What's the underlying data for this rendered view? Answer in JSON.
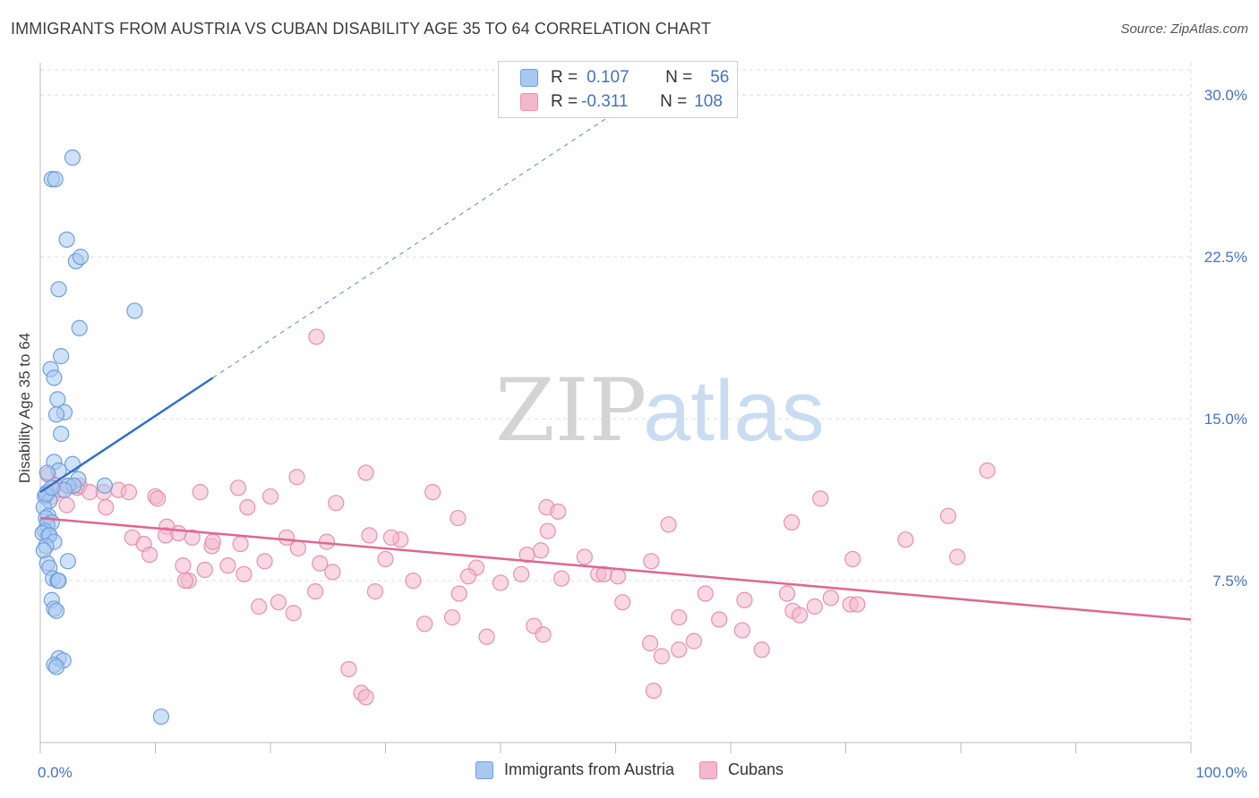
{
  "title": "IMMIGRANTS FROM AUSTRIA VS CUBAN DISABILITY AGE 35 TO 64 CORRELATION CHART",
  "source": "Source: ZipAtlas.com",
  "watermark": {
    "zip": "ZIP",
    "atlas": "atlas"
  },
  "legend_stats": [
    {
      "r_label": "R =",
      "r_value": "0.107",
      "n_label": "N =",
      "n_value": "56"
    },
    {
      "r_label": "R =",
      "r_value": "-0.311",
      "n_label": "N =",
      "n_value": "108"
    }
  ],
  "colors": {
    "blue_fill": "#a8c8f0",
    "blue_stroke": "#6f9fdd",
    "blue_line": "#2f6fcf",
    "pink_fill": "#f4b8cc",
    "pink_stroke": "#e890ad",
    "pink_line": "#e06692",
    "grid": "#dddddd",
    "axis_text": "#4472c4"
  },
  "chart_data": {
    "type": "scatter",
    "title": "IMMIGRANTS FROM AUSTRIA VS CUBAN DISABILITY AGE 35 TO 64 CORRELATION CHART",
    "xlabel": "",
    "ylabel": "Disability Age 35 to 64",
    "xlim": [
      0,
      100
    ],
    "ylim": [
      0,
      31.5
    ],
    "x_tick_labels": [
      "0.0%",
      "100.0%"
    ],
    "y_ticks": [
      7.5,
      15.0,
      22.5,
      30.0
    ],
    "y_tick_labels": [
      "7.5%",
      "15.0%",
      "22.5%",
      "30.0%"
    ],
    "grid": true,
    "legend": "bottom",
    "series": [
      {
        "name": "Immigrants from Austria",
        "color": "#a8c8f0",
        "trend": {
          "x": [
            0,
            15
          ],
          "y": [
            11.6,
            16.9
          ],
          "dashed_to": {
            "x": 50,
            "y": 29.2
          }
        },
        "points": [
          [
            2.8,
            27.1
          ],
          [
            1.0,
            26.1
          ],
          [
            1.3,
            26.1
          ],
          [
            2.3,
            23.3
          ],
          [
            3.1,
            22.3
          ],
          [
            3.5,
            22.5
          ],
          [
            1.6,
            21.0
          ],
          [
            8.2,
            20.0
          ],
          [
            3.4,
            19.2
          ],
          [
            1.8,
            17.9
          ],
          [
            0.9,
            17.3
          ],
          [
            1.2,
            16.9
          ],
          [
            1.5,
            15.9
          ],
          [
            2.1,
            15.3
          ],
          [
            1.4,
            15.2
          ],
          [
            1.8,
            14.3
          ],
          [
            1.2,
            13.0
          ],
          [
            2.8,
            12.9
          ],
          [
            1.6,
            12.6
          ],
          [
            0.6,
            12.5
          ],
          [
            3.3,
            12.2
          ],
          [
            2.4,
            11.9
          ],
          [
            2.9,
            11.9
          ],
          [
            5.6,
            11.9
          ],
          [
            2.1,
            11.7
          ],
          [
            0.6,
            11.6
          ],
          [
            0.4,
            11.4
          ],
          [
            0.8,
            11.2
          ],
          [
            0.3,
            10.9
          ],
          [
            0.7,
            10.5
          ],
          [
            0.5,
            10.4
          ],
          [
            1.0,
            10.2
          ],
          [
            0.6,
            10.1
          ],
          [
            0.4,
            9.8
          ],
          [
            0.7,
            9.6
          ],
          [
            0.2,
            9.7
          ],
          [
            0.8,
            9.6
          ],
          [
            1.2,
            9.3
          ],
          [
            0.5,
            9.1
          ],
          [
            0.3,
            8.9
          ],
          [
            2.4,
            8.4
          ],
          [
            0.6,
            8.3
          ],
          [
            0.8,
            8.1
          ],
          [
            1.1,
            7.6
          ],
          [
            1.5,
            7.5
          ],
          [
            1.6,
            7.5
          ],
          [
            1.0,
            6.6
          ],
          [
            1.2,
            6.2
          ],
          [
            1.4,
            6.1
          ],
          [
            1.6,
            3.9
          ],
          [
            2.0,
            3.8
          ],
          [
            1.2,
            3.6
          ],
          [
            1.4,
            3.5
          ],
          [
            10.5,
            1.2
          ],
          [
            0.5,
            11.5
          ],
          [
            1.0,
            11.8
          ]
        ]
      },
      {
        "name": "Cubans",
        "color": "#f4b8cc",
        "trend": {
          "x": [
            0,
            100
          ],
          "y": [
            10.4,
            5.7
          ]
        },
        "points": [
          [
            24.0,
            18.8
          ],
          [
            82.3,
            12.6
          ],
          [
            28.3,
            12.5
          ],
          [
            22.3,
            12.3
          ],
          [
            0.7,
            12.4
          ],
          [
            1.3,
            11.9
          ],
          [
            3.2,
            11.8
          ],
          [
            6.8,
            11.7
          ],
          [
            1.0,
            11.4
          ],
          [
            17.2,
            11.8
          ],
          [
            13.9,
            11.6
          ],
          [
            3.4,
            11.9
          ],
          [
            5.5,
            11.6
          ],
          [
            7.7,
            11.6
          ],
          [
            10.0,
            11.4
          ],
          [
            10.2,
            11.3
          ],
          [
            20.0,
            11.4
          ],
          [
            25.7,
            11.1
          ],
          [
            34.1,
            11.6
          ],
          [
            1.8,
            11.7
          ],
          [
            4.3,
            11.6
          ],
          [
            2.5,
            11.9
          ],
          [
            67.8,
            11.3
          ],
          [
            5.7,
            10.9
          ],
          [
            2.3,
            11.0
          ],
          [
            18.0,
            10.9
          ],
          [
            44.0,
            10.9
          ],
          [
            45.0,
            10.7
          ],
          [
            36.3,
            10.4
          ],
          [
            78.9,
            10.5
          ],
          [
            11.0,
            10.0
          ],
          [
            8.0,
            9.5
          ],
          [
            13.2,
            9.5
          ],
          [
            14.9,
            9.1
          ],
          [
            15.0,
            9.3
          ],
          [
            21.4,
            9.5
          ],
          [
            22.4,
            9.0
          ],
          [
            28.6,
            9.6
          ],
          [
            31.3,
            9.4
          ],
          [
            44.1,
            9.8
          ],
          [
            54.6,
            10.1
          ],
          [
            65.3,
            10.2
          ],
          [
            75.2,
            9.4
          ],
          [
            9.0,
            9.2
          ],
          [
            9.5,
            8.7
          ],
          [
            10.9,
            9.6
          ],
          [
            12.0,
            9.7
          ],
          [
            17.4,
            9.2
          ],
          [
            24.9,
            9.3
          ],
          [
            30.5,
            9.5
          ],
          [
            42.3,
            8.7
          ],
          [
            43.5,
            8.9
          ],
          [
            47.3,
            8.6
          ],
          [
            53.1,
            8.4
          ],
          [
            70.6,
            8.5
          ],
          [
            79.7,
            8.6
          ],
          [
            14.3,
            8.0
          ],
          [
            16.3,
            8.2
          ],
          [
            17.7,
            7.8
          ],
          [
            19.5,
            8.4
          ],
          [
            25.4,
            7.9
          ],
          [
            30.0,
            8.5
          ],
          [
            37.9,
            8.1
          ],
          [
            41.8,
            7.8
          ],
          [
            48.5,
            7.8
          ],
          [
            49.0,
            7.8
          ],
          [
            12.4,
            8.2
          ],
          [
            12.9,
            7.5
          ],
          [
            24.3,
            8.3
          ],
          [
            32.4,
            7.5
          ],
          [
            36.4,
            6.9
          ],
          [
            37.2,
            7.7
          ],
          [
            45.3,
            7.6
          ],
          [
            50.2,
            7.7
          ],
          [
            57.8,
            6.9
          ],
          [
            61.2,
            6.6
          ],
          [
            64.9,
            6.9
          ],
          [
            67.3,
            6.3
          ],
          [
            68.7,
            6.7
          ],
          [
            70.4,
            6.4
          ],
          [
            71.0,
            6.4
          ],
          [
            23.9,
            7.0
          ],
          [
            29.1,
            7.0
          ],
          [
            40.0,
            7.4
          ],
          [
            50.6,
            6.5
          ],
          [
            55.5,
            5.8
          ],
          [
            59.0,
            5.7
          ],
          [
            65.4,
            6.1
          ],
          [
            66.0,
            5.9
          ],
          [
            19.0,
            6.3
          ],
          [
            20.7,
            6.5
          ],
          [
            22.0,
            6.0
          ],
          [
            33.4,
            5.5
          ],
          [
            38.8,
            4.9
          ],
          [
            42.9,
            5.4
          ],
          [
            43.7,
            5.0
          ],
          [
            53.0,
            4.6
          ],
          [
            56.8,
            4.7
          ],
          [
            61.0,
            5.2
          ],
          [
            62.7,
            4.3
          ],
          [
            54.0,
            4.0
          ],
          [
            55.5,
            4.3
          ],
          [
            26.8,
            3.4
          ],
          [
            27.9,
            2.3
          ],
          [
            28.3,
            2.1
          ],
          [
            53.3,
            2.4
          ],
          [
            35.8,
            5.8
          ],
          [
            12.6,
            7.5
          ]
        ]
      }
    ]
  }
}
